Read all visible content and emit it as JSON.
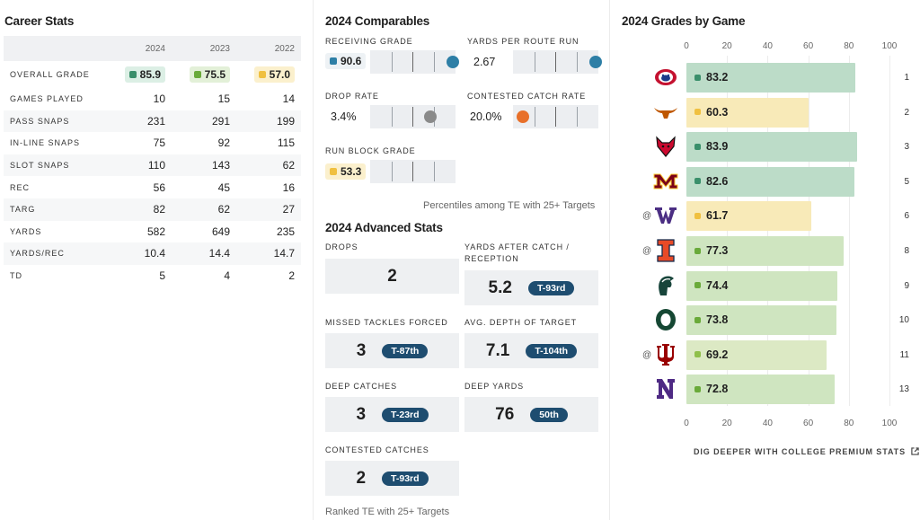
{
  "career_stats": {
    "title": "Career Stats",
    "years": [
      "2024",
      "2023",
      "2022"
    ],
    "overall_grade": {
      "label": "OVERALL GRADE",
      "values": [
        {
          "value": "85.9",
          "color": "#3a8f6b",
          "bg": "#dcefe5"
        },
        {
          "value": "75.5",
          "color": "#6aaa3a",
          "bg": "#e3f0d8"
        },
        {
          "value": "57.0",
          "color": "#f0c040",
          "bg": "#fbf0cd"
        }
      ]
    },
    "rows": [
      {
        "label": "GAMES PLAYED",
        "values": [
          "10",
          "15",
          "14"
        ]
      },
      {
        "label": "PASS SNAPS",
        "values": [
          "231",
          "291",
          "199"
        ]
      },
      {
        "label": "IN-LINE SNAPS",
        "values": [
          "75",
          "92",
          "115"
        ]
      },
      {
        "label": "SLOT SNAPS",
        "values": [
          "110",
          "143",
          "62"
        ]
      },
      {
        "label": "REC",
        "values": [
          "56",
          "45",
          "16"
        ]
      },
      {
        "label": "TARG",
        "values": [
          "82",
          "62",
          "27"
        ]
      },
      {
        "label": "YARDS",
        "values": [
          "582",
          "649",
          "235"
        ]
      },
      {
        "label": "YARDS/REC",
        "values": [
          "10.4",
          "14.4",
          "14.7"
        ]
      },
      {
        "label": "TD",
        "values": [
          "5",
          "4",
          "2"
        ]
      }
    ]
  },
  "comparables": {
    "title": "2024 Comparables",
    "items": [
      {
        "label": "RECEIVING GRADE",
        "value": "90.6",
        "chip": true,
        "chip_color": "#2e7fa6",
        "marker_color": "#2e7fa6",
        "percentile": 0.97
      },
      {
        "label": "YARDS PER ROUTE RUN",
        "value": "2.67",
        "chip": false,
        "marker_color": "#2e7fa6",
        "percentile": 0.97
      },
      {
        "label": "DROP RATE",
        "value": "3.4%",
        "chip": false,
        "marker_color": "#8a8a8a",
        "percentile": 0.7
      },
      {
        "label": "CONTESTED CATCH RATE",
        "value": "20.0%",
        "chip": false,
        "marker_color": "#e8702a",
        "percentile": 0.12
      },
      {
        "label": "RUN BLOCK GRADE",
        "value": "53.3",
        "chip": true,
        "chip_color": "#f0c040"
      }
    ],
    "note": "Percentiles among TE with 25+ Targets"
  },
  "advanced": {
    "title": "2024 Advanced Stats",
    "items": [
      {
        "label": "DROPS",
        "value": "2",
        "rank": ""
      },
      {
        "label": "YARDS AFTER CATCH / RECEPTION",
        "value": "5.2",
        "rank": "T-93rd"
      },
      {
        "label": "MISSED TACKLES FORCED",
        "value": "3",
        "rank": "T-87th"
      },
      {
        "label": "AVG. DEPTH OF TARGET",
        "value": "7.1",
        "rank": "T-104th"
      },
      {
        "label": "DEEP CATCHES",
        "value": "3",
        "rank": "T-23rd"
      },
      {
        "label": "DEEP YARDS",
        "value": "76",
        "rank": "50th"
      },
      {
        "label": "CONTESTED CATCHES",
        "value": "2",
        "rank": "T-93rd"
      }
    ],
    "note": "Ranked TE with 25+ Targets"
  },
  "grades_by_game": {
    "title": "2024 Grades by Game",
    "axis_ticks": [
      "0",
      "20",
      "40",
      "60",
      "80",
      "100"
    ],
    "games": [
      {
        "game": "1",
        "away": false,
        "opponent": "Fresno State",
        "logo": "bulldog-logo-icon",
        "grade": 83.2,
        "label": "83.2",
        "color": "#3a8f6b",
        "bar": "#bcdcc8"
      },
      {
        "game": "2",
        "away": false,
        "opponent": "Texas",
        "logo": "longhorn-logo-icon",
        "grade": 60.3,
        "label": "60.3",
        "color": "#f0c040",
        "bar": "#f8eab8"
      },
      {
        "game": "3",
        "away": false,
        "opponent": "Arkansas State",
        "logo": "red-wolf-logo-icon",
        "grade": 83.9,
        "label": "83.9",
        "color": "#3a8f6b",
        "bar": "#bcdcc8"
      },
      {
        "game": "5",
        "away": false,
        "opponent": "Minnesota",
        "logo": "minnesota-m-logo-icon",
        "grade": 82.6,
        "label": "82.6",
        "color": "#3a8f6b",
        "bar": "#bcdcc8"
      },
      {
        "game": "6",
        "away": true,
        "at": "@",
        "opponent": "Washington",
        "logo": "washington-w-logo-icon",
        "grade": 61.7,
        "label": "61.7",
        "color": "#f0c040",
        "bar": "#f8eab8"
      },
      {
        "game": "8",
        "away": true,
        "at": "@",
        "opponent": "Illinois",
        "logo": "illinois-i-logo-icon",
        "grade": 77.3,
        "label": "77.3",
        "color": "#6aaa3a",
        "bar": "#cfe5c0"
      },
      {
        "game": "9",
        "away": false,
        "opponent": "Michigan State",
        "logo": "spartan-logo-icon",
        "grade": 74.4,
        "label": "74.4",
        "color": "#6aaa3a",
        "bar": "#cfe5c0"
      },
      {
        "game": "10",
        "away": false,
        "opponent": "Oregon",
        "logo": "oregon-o-logo-icon",
        "grade": 73.8,
        "label": "73.8",
        "color": "#6aaa3a",
        "bar": "#cfe5c0"
      },
      {
        "game": "11",
        "away": true,
        "at": "@",
        "opponent": "Indiana",
        "logo": "indiana-iu-logo-icon",
        "grade": 69.2,
        "label": "69.2",
        "color": "#8fbf4a",
        "bar": "#dce9c4"
      },
      {
        "game": "13",
        "away": false,
        "opponent": "Northwestern",
        "logo": "northwestern-n-logo-icon",
        "grade": 72.8,
        "label": "72.8",
        "color": "#6aaa3a",
        "bar": "#cfe5c0"
      }
    ],
    "footer_link": "DIG DEEPER WITH COLLEGE PREMIUM STATS",
    "footer_icon": "external-link-icon"
  }
}
